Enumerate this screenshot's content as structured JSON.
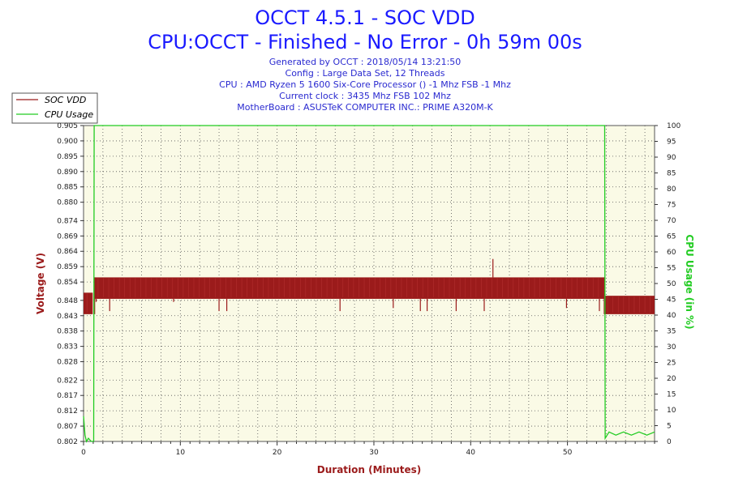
{
  "header": {
    "title": "OCCT 4.5.1 - SOC VDD",
    "subtitle": "CPU:OCCT - Finished - No Error - 0h 59m 00s",
    "info_lines": [
      "Generated by OCCT : 2018/05/14 13:21:50",
      "Config : Large Data Set, 12 Threads",
      "CPU : AMD Ryzen 5 1600 Six-Core Processor () -1 Mhz FSB -1 Mhz",
      "Current clock : 3435 Mhz FSB 102 Mhz",
      "MotherBoard : ASUSTeK COMPUTER INC.: PRIME A320M-K"
    ]
  },
  "colors": {
    "title": "#1a1aff",
    "info": "#2a2ad0",
    "voltage": "#9b1b1b",
    "cpu": "#22cc22",
    "plot_bg": "#fafae6",
    "grid": "#555555"
  },
  "chart_data": {
    "type": "line",
    "title": "OCCT 4.5.1 - SOC VDD",
    "xlabel": "Duration (Minutes)",
    "ylabel_left": "Voltage (V)",
    "ylabel_right": "CPU Usage (in %)",
    "xlim": [
      0,
      59
    ],
    "ylim_left": [
      0.802,
      0.905
    ],
    "ylim_right": [
      0,
      100
    ],
    "x_ticks": [
      0,
      10,
      20,
      30,
      40,
      50
    ],
    "y_ticks_left": [
      0.802,
      0.807,
      0.812,
      0.817,
      0.822,
      0.828,
      0.833,
      0.838,
      0.843,
      0.848,
      0.854,
      0.859,
      0.864,
      0.869,
      0.874,
      0.88,
      0.885,
      0.89,
      0.895,
      0.9,
      0.905
    ],
    "y_ticks_left_labels": [
      "0.802",
      "0.807",
      "0.812",
      "0.817",
      "0.822",
      "0.828",
      "0.833",
      "0.838",
      "0.843",
      "0.848",
      "0.854",
      "0.859",
      "0.864",
      "0.869",
      "0.874",
      "0.880",
      "0.885",
      "0.890",
      "0.895",
      "0.900",
      "0.905"
    ],
    "y_ticks_right": [
      0,
      5,
      10,
      15,
      20,
      25,
      30,
      35,
      40,
      45,
      50,
      55,
      60,
      65,
      70,
      75,
      80,
      85,
      90,
      95,
      100
    ],
    "grid": true,
    "legend_position": "top-left",
    "series": [
      {
        "name": "SOC VDD",
        "axis": "left",
        "segments": [
          {
            "x_start": 0.0,
            "x_end": 0.95,
            "low": 0.8435,
            "high": 0.8505
          },
          {
            "x_start": 1.15,
            "x_end": 53.8,
            "low": 0.8485,
            "high": 0.8555
          },
          {
            "x_start": 53.8,
            "x_end": 59.0,
            "low": 0.8435,
            "high": 0.8495
          }
        ],
        "dips": [
          {
            "x": 0.7,
            "y": 0.8435
          },
          {
            "x": 1.3,
            "y": 0.8475
          },
          {
            "x": 2.7,
            "y": 0.8445
          },
          {
            "x": 9.3,
            "y": 0.8475
          },
          {
            "x": 14.0,
            "y": 0.8445
          },
          {
            "x": 14.8,
            "y": 0.8445
          },
          {
            "x": 26.5,
            "y": 0.8445
          },
          {
            "x": 32.0,
            "y": 0.8455
          },
          {
            "x": 34.8,
            "y": 0.8445
          },
          {
            "x": 35.5,
            "y": 0.8445
          },
          {
            "x": 38.5,
            "y": 0.8445
          },
          {
            "x": 41.4,
            "y": 0.8445
          },
          {
            "x": 49.9,
            "y": 0.8455
          },
          {
            "x": 53.3,
            "y": 0.8445
          }
        ],
        "spikes": [
          {
            "x": 42.3,
            "y": 0.8615
          }
        ]
      },
      {
        "name": "CPU Usage",
        "axis": "right",
        "points": [
          [
            0.0,
            8
          ],
          [
            0.15,
            2
          ],
          [
            0.3,
            0
          ],
          [
            0.5,
            1
          ],
          [
            0.8,
            0
          ],
          [
            1.05,
            0
          ],
          [
            1.1,
            100
          ],
          [
            53.85,
            100
          ],
          [
            53.9,
            1
          ],
          [
            54.3,
            3
          ],
          [
            55.0,
            2
          ],
          [
            55.8,
            3
          ],
          [
            56.6,
            2
          ],
          [
            57.4,
            3
          ],
          [
            58.2,
            2
          ],
          [
            59.0,
            3
          ]
        ]
      }
    ]
  }
}
